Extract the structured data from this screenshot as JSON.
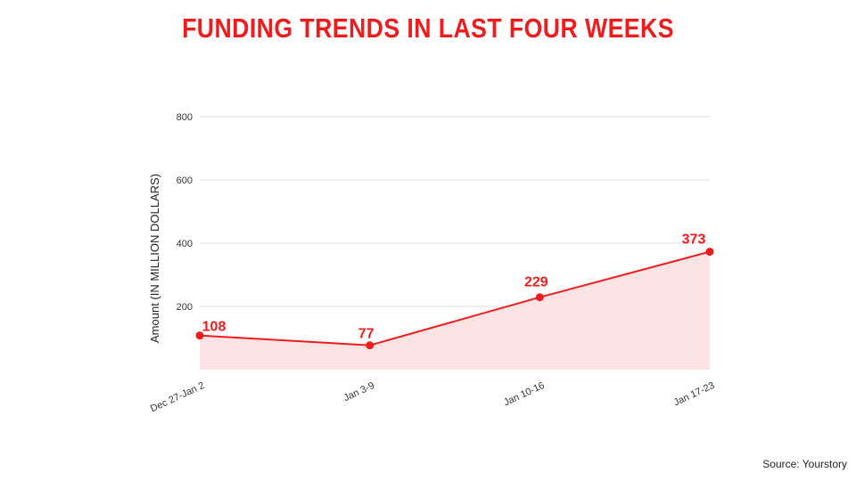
{
  "title": "FUNDING TRENDS IN LAST FOUR WEEKS",
  "source": "Source: Yourstory",
  "colors": {
    "accent": "#ee1c1c",
    "area_fill": "#fde3e4",
    "grid": "#dddddd"
  },
  "chart_data": {
    "type": "area",
    "title": "FUNDING TRENDS IN LAST FOUR WEEKS",
    "xlabel": "",
    "ylabel": "Amount (IN MILLION DOLLARS)",
    "categories": [
      "Dec 27-Jan 2",
      "Jan 3-9",
      "Jan 10-16",
      "Jan 17-23"
    ],
    "values": [
      108,
      77,
      229,
      373
    ],
    "data_labels": [
      "108",
      "77",
      "229",
      "373"
    ],
    "yticks": [
      200,
      400,
      600,
      800
    ],
    "ytick_labels": [
      "200",
      "400",
      "600",
      "800"
    ],
    "ylim": [
      0,
      800
    ],
    "grid": true,
    "legend": "none"
  }
}
